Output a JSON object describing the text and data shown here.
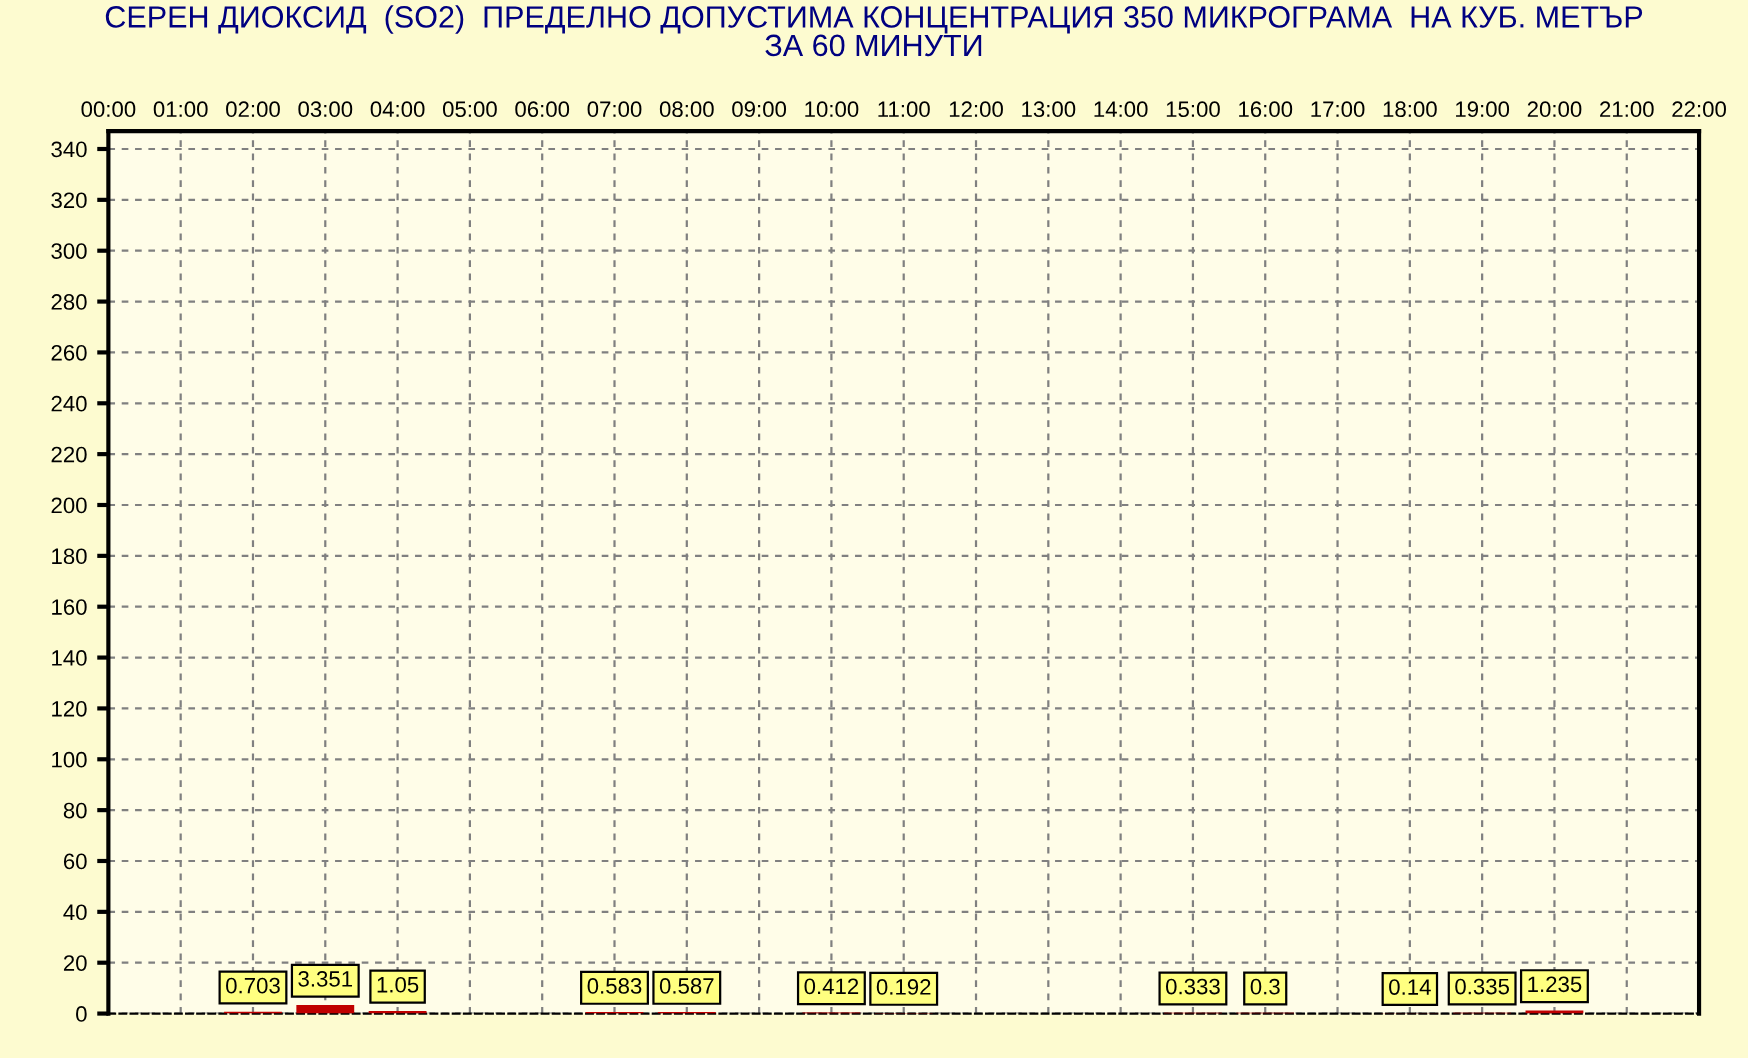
{
  "chart_data": {
    "type": "bar",
    "title": "СЕРЕН ДИОКСИД  (SO2)  ПРЕДЕЛНО ДОПУСТИМА КОНЦЕНТРАЦИЯ 350 МИКРОГРАМА  НА КУБ. МЕТЪР\nЗА 60 МИНУТИ",
    "x": [
      2,
      3,
      4,
      7,
      8,
      10,
      11,
      15,
      16,
      18,
      19,
      20
    ],
    "values": [
      0.703,
      3.351,
      1.05,
      0.583,
      0.587,
      0.412,
      0.192,
      0.333,
      0.3,
      0.14,
      0.335,
      1.235
    ],
    "color": "#c00000",
    "data_labels": true,
    "xlim": [
      0,
      22
    ],
    "xticks": [
      {
        "value": 0,
        "label": "00:00"
      },
      {
        "value": 1,
        "label": "01:00"
      },
      {
        "value": 2,
        "label": "02:00"
      },
      {
        "value": 3,
        "label": "03:00"
      },
      {
        "value": 4,
        "label": "04:00"
      },
      {
        "value": 5,
        "label": "05:00"
      },
      {
        "value": 6,
        "label": "06:00"
      },
      {
        "value": 7,
        "label": "07:00"
      },
      {
        "value": 8,
        "label": "08:00"
      },
      {
        "value": 9,
        "label": "09:00"
      },
      {
        "value": 10,
        "label": "10:00"
      },
      {
        "value": 11,
        "label": "11:00"
      },
      {
        "value": 12,
        "label": "12:00"
      },
      {
        "value": 13,
        "label": "13:00"
      },
      {
        "value": 14,
        "label": "14:00"
      },
      {
        "value": 15,
        "label": "15:00"
      },
      {
        "value": 16,
        "label": "16:00"
      },
      {
        "value": 17,
        "label": "17:00"
      },
      {
        "value": 18,
        "label": "18:00"
      },
      {
        "value": 19,
        "label": "19:00"
      },
      {
        "value": 20,
        "label": "20:00"
      },
      {
        "value": 21,
        "label": "21:00"
      },
      {
        "value": 22,
        "label": "22:00"
      }
    ],
    "ylim": [
      0,
      347
    ],
    "yticks": [
      0,
      20,
      40,
      60,
      80,
      100,
      120,
      140,
      160,
      180,
      200,
      220,
      240,
      260,
      280,
      300,
      320,
      340
    ],
    "grid": true
  }
}
